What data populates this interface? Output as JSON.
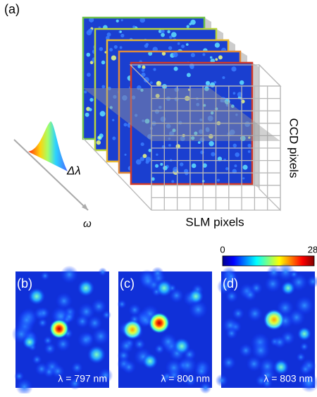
{
  "panel_a": {
    "label": "(a)",
    "delta_label": "Δλ",
    "omega_label": "ω",
    "ccd_label": "CCD pixels",
    "slm_label": "SLM pixels"
  },
  "colorbar": {
    "min_label": "0",
    "max_label": "28"
  },
  "panels": [
    {
      "label": "(b)",
      "wavelength": "λ = 797 nm"
    },
    {
      "label": "(c)",
      "wavelength": "λ = 800 nm"
    },
    {
      "label": "(d)",
      "wavelength": "λ = 803 nm"
    }
  ]
}
